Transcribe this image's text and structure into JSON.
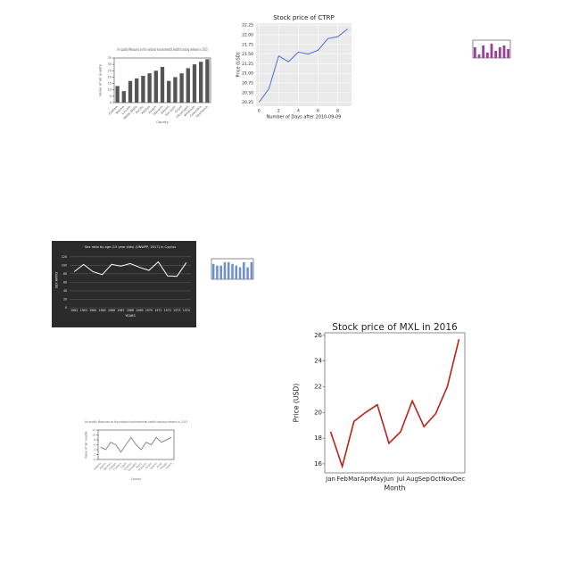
{
  "chart_data": [
    {
      "type": "bar",
      "title": "Air quality Measures on the national environmental health tracking network in 2013",
      "x_label": "County",
      "y_label": "Value of air quality",
      "categories": [
        "Clallam",
        "Yakima",
        "Lincoln",
        "Walla Walla",
        "Pacific",
        "Kittitas",
        "Asotin",
        "Stevens",
        "Adams",
        "San Juan",
        "Grant",
        "Okanogan",
        "Whitman",
        "Columbia",
        "Skamania"
      ],
      "values": [
        13,
        9,
        17,
        19,
        21,
        23,
        25,
        28,
        17,
        20,
        23,
        27,
        30,
        32,
        34
      ],
      "color": "#555555",
      "ylim": [
        0,
        35
      ],
      "yticks": [
        0,
        5,
        10,
        15,
        20,
        25,
        30,
        35
      ]
    },
    {
      "type": "line",
      "title": "Stock price of CTRP",
      "x_label": "Number of Days after 2010-09-09",
      "y_label": "Price (USD)",
      "x": [
        0,
        1,
        2,
        3,
        4,
        5,
        6,
        7,
        8,
        9
      ],
      "values": [
        20.25,
        20.6,
        21.45,
        21.3,
        21.55,
        21.5,
        21.6,
        21.9,
        21.95,
        22.15
      ],
      "color": "#4a6fd6",
      "xlim": [
        -0.3,
        9.4
      ],
      "xticks": [
        0,
        2,
        4,
        6,
        8
      ],
      "ylim": [
        20.15,
        22.3
      ],
      "yticks": [
        {
          "value": 20.25,
          "label": "20.25"
        },
        {
          "value": 20.5,
          "label": "20.50"
        },
        {
          "value": 20.75,
          "label": "20.75"
        },
        {
          "value": 21,
          "label": "21.00"
        },
        {
          "value": 21.25,
          "label": "21.25"
        },
        {
          "value": 21.5,
          "label": "21.50"
        },
        {
          "value": 21.75,
          "label": "21.75"
        },
        {
          "value": 22,
          "label": "22.00"
        },
        {
          "value": 22.25,
          "label": "22.25"
        }
      ],
      "grid": true,
      "background": "#eaeaea"
    },
    {
      "type": "bar",
      "values": [
        6,
        2,
        7,
        3,
        8,
        4,
        6,
        7,
        5
      ],
      "color": "#9b3d9b",
      "ylim": [
        0,
        10
      ]
    },
    {
      "type": "line",
      "title": "Sex ratio by age (15 year olds) (UNWPP, 2017) in Cyprus",
      "x_label": "YEARS",
      "y_label": "SEX RATIO",
      "categories": [
        "1962",
        "1963",
        "1964",
        "1965",
        "1966",
        "1967",
        "1968",
        "1969",
        "1970",
        "1971",
        "1972",
        "1973",
        "1974"
      ],
      "values": [
        85,
        102,
        85,
        78,
        102,
        98,
        104,
        95,
        88,
        108,
        75,
        74,
        106
      ],
      "color": "#ffffff",
      "background": "#2b2b2b",
      "ylim": [
        0,
        130
      ],
      "yticks": [
        0,
        20,
        40,
        60,
        80,
        100,
        120
      ],
      "grid": true
    },
    {
      "type": "bar",
      "values": [
        9,
        8,
        8,
        10,
        10,
        9,
        8,
        7,
        10,
        7,
        10
      ],
      "color": "#6f8fce",
      "ylim": [
        0,
        12
      ]
    },
    {
      "type": "line",
      "title": "Stock price of MXL in 2016",
      "x_label": "Month",
      "y_label": "Price (USD)",
      "categories": [
        "Jan",
        "Feb",
        "Mar",
        "Apr",
        "May",
        "Jun",
        "Jul",
        "Aug",
        "Sep",
        "Oct",
        "Nov",
        "Dec"
      ],
      "values": [
        18.5,
        15.8,
        19.3,
        20.0,
        20.6,
        17.6,
        18.5,
        20.9,
        18.9,
        19.9,
        22.0,
        25.7
      ],
      "color": "#c0201a",
      "ylim": [
        15.3,
        26.2
      ],
      "yticks": [
        16,
        18,
        20,
        22,
        24,
        26
      ]
    },
    {
      "type": "line",
      "title": "Air quality Measures on the national environmental health tracking network in 2013",
      "x_label": "County",
      "y_label": "Value of air quality",
      "categories": [
        "Adams",
        "Asotin",
        "Benton",
        "Chelan",
        "Clallam",
        "Clark",
        "Cowlitz",
        "Douglas",
        "Ferry",
        "Franklin",
        "Grant",
        "Island",
        "King",
        "Kitsap",
        "Lewis"
      ],
      "values": [
        5,
        4,
        7,
        6,
        3,
        6,
        9,
        6,
        4,
        7,
        6,
        9,
        7,
        8,
        9
      ],
      "color": "#888888",
      "ylim": [
        0,
        12
      ],
      "yticks": [
        0,
        2,
        4,
        6,
        8,
        10,
        12
      ]
    }
  ]
}
